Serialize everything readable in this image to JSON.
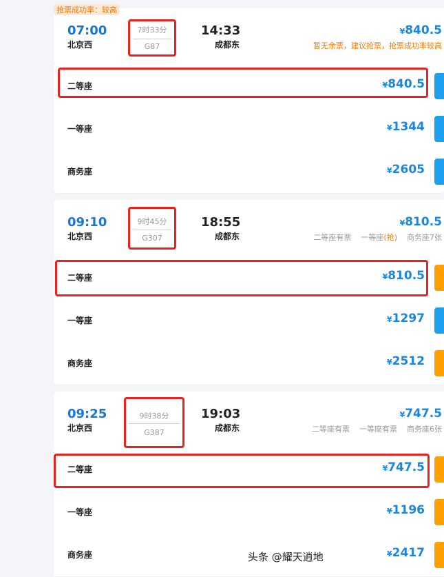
{
  "colors": {
    "accent": "#1a86e0",
    "orange": "#ff9f00",
    "blue_button": "#1ea0f0",
    "highlight": "#e8231f"
  },
  "trains": [
    {
      "tag": "抢票成功率：较高",
      "dep_time": "07:00",
      "dep_station": "北京西",
      "duration": "7时33分",
      "train_no": "G87",
      "arr_time": "14:33",
      "arr_station": "成都东",
      "price": "840.5",
      "note": "暂无余票，建议抢票，抢票成功率较高",
      "button": "blue",
      "seats": [
        {
          "name": "二等座",
          "price": "840.5"
        },
        {
          "name": "一等座",
          "price": "1344"
        },
        {
          "name": "商务座",
          "price": "2605"
        }
      ]
    },
    {
      "dep_time": "09:10",
      "dep_station": "北京西",
      "duration": "9时45分",
      "train_no": "G307",
      "arr_time": "18:55",
      "arr_station": "成都东",
      "price": "810.5",
      "avail": [
        "二等座有票",
        "一等座",
        "(抢)",
        "商务座7张"
      ],
      "button": "mixed",
      "seats": [
        {
          "name": "二等座",
          "price": "810.5"
        },
        {
          "name": "一等座",
          "price": "1297"
        },
        {
          "name": "商务座",
          "price": "2512"
        }
      ]
    },
    {
      "dep_time": "09:25",
      "dep_station": "北京西",
      "duration": "9时38分",
      "train_no": "G387",
      "arr_time": "19:03",
      "arr_station": "成都东",
      "price": "747.5",
      "avail": [
        "二等座有票",
        "一等座有票",
        "商务座6张"
      ],
      "button": "orange",
      "seats": [
        {
          "name": "二等座",
          "price": "747.5"
        },
        {
          "name": "一等座",
          "price": "1196"
        },
        {
          "name": "商务座",
          "price": "2417"
        }
      ]
    }
  ],
  "currency": "¥",
  "watermark": "头条 @耀天逍地"
}
